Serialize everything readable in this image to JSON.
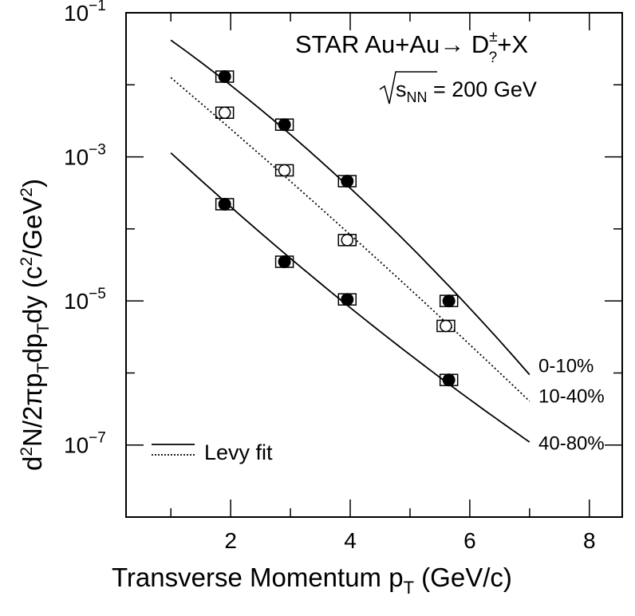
{
  "chart_data": {
    "type": "scatter",
    "title": "STAR Au+Au→ D± ?+X",
    "annotation": {
      "sqrt_s": "s",
      "sqrt_s_sub": "NN",
      "sqrt_s_value": " = 200 GeV"
    },
    "xlabel": "Transverse Momentum p",
    "xlabel_sub": "T",
    "xlabel_unit": " (GeV/c)",
    "ylabel": "d²N/2πpₜdpₜdy (c²/GeV²)",
    "xlim": [
      0.25,
      8.55
    ],
    "ylim": [
      1e-08,
      0.1
    ],
    "yscale": "log",
    "x_ticks": [
      2,
      4,
      6,
      8
    ],
    "x_tick_labels": [
      "2",
      "4",
      "6",
      "8"
    ],
    "y_ticks": [
      1e-07,
      1e-05,
      0.001,
      0.1
    ],
    "y_tick_labels": [
      {
        "base": "10",
        "exp": "−7"
      },
      {
        "base": "10",
        "exp": "−5"
      },
      {
        "base": "10",
        "exp": "−3"
      },
      {
        "base": "10",
        "exp": "−1"
      }
    ],
    "grid": false,
    "legend_position": "bottom-left",
    "legend": [
      {
        "label": "Levy fit",
        "style": "solid"
      },
      {
        "label": "",
        "style": "dotted"
      }
    ],
    "series": [
      {
        "name": "0-10%",
        "marker": "filled-circle",
        "x": [
          1.9,
          2.9,
          3.95,
          5.65
        ],
        "y": [
          0.013,
          0.0028,
          0.00046,
          1e-05
        ],
        "fit": {
          "x": [
            1.0,
            7.0
          ],
          "style": "solid",
          "y_start": 0.035,
          "y_end": 1.2e-06
        }
      },
      {
        "name": "10-40%",
        "marker": "open-circle",
        "x": [
          1.9,
          2.9,
          3.95,
          5.6
        ],
        "y": [
          0.0041,
          0.00065,
          7e-05,
          4.5e-06
        ],
        "fit": {
          "x": [
            1.0,
            7.0
          ],
          "style": "dotted",
          "y_start": 0.0096,
          "y_end": 4.5e-07
        }
      },
      {
        "name": "40-80%",
        "marker": "filled-circle",
        "x": [
          1.9,
          2.9,
          3.95,
          5.65
        ],
        "y": [
          0.00022,
          3.5e-05,
          1.05e-05,
          8e-07
        ],
        "fit": {
          "x": [
            1.0,
            7.0
          ],
          "style": "solid",
          "y_start": 0.0013,
          "y_end": 1e-07
        }
      }
    ]
  }
}
